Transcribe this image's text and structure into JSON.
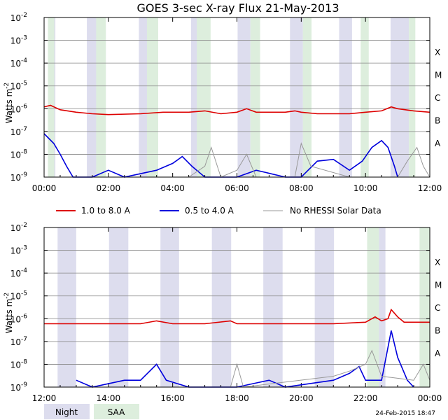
{
  "title": "GOES 3-sec X-ray Flux   21-May-2013",
  "footer_timestamp": "24-Feb-2015 18:47",
  "colors": {
    "long": "#dd0000",
    "short": "#0000dd",
    "norhessi": "#999999",
    "night": "#ddddee",
    "saa": "#ddeedd",
    "grid": "#888888"
  },
  "legend": {
    "long_label": "1.0 to 8.0 A",
    "short_label": "0.5 to 4.0 A",
    "norhessi_label": "No RHESSI Solar Data",
    "night_label": "Night",
    "saa_label": "SAA"
  },
  "chart_data": [
    {
      "type": "line",
      "panel": "top",
      "ylabel": "Watts m^-2",
      "y_scale": "log",
      "ylim": [
        1e-09,
        0.01
      ],
      "y_tick_labels": [
        "10-9",
        "10-8",
        "10-7",
        "10-6",
        "10-5",
        "10-4",
        "10-3",
        "10-2"
      ],
      "xlim_hours": [
        0,
        12
      ],
      "x_tick_labels": [
        "00:00",
        "02:00",
        "04:00",
        "06:00",
        "08:00",
        "10:00",
        "12:00"
      ],
      "class_labels": [
        "A",
        "B",
        "C",
        "M",
        "X"
      ],
      "night_intervals": [
        [
          0.12,
          0.35
        ],
        [
          1.33,
          1.92
        ],
        [
          2.95,
          3.55
        ],
        [
          4.57,
          5.12
        ],
        [
          6.02,
          6.42
        ],
        [
          7.65,
          8.05
        ],
        [
          9.18,
          9.58
        ],
        [
          10.78,
          11.35
        ]
      ],
      "saa_intervals": [
        [
          0.12,
          0.32
        ],
        [
          1.62,
          1.92
        ],
        [
          3.2,
          3.55
        ],
        [
          4.75,
          5.18
        ],
        [
          6.42,
          6.72
        ],
        [
          8.05,
          8.32
        ],
        [
          9.85,
          10.1
        ],
        [
          11.35,
          11.55
        ]
      ],
      "series": [
        {
          "name": "1.0 to 8.0 A",
          "color": "#dd0000",
          "points": [
            [
              0,
              1.2e-06
            ],
            [
              0.2,
              1.4e-06
            ],
            [
              0.5,
              9e-07
            ],
            [
              1,
              7e-07
            ],
            [
              1.5,
              6e-07
            ],
            [
              2,
              5.5e-07
            ],
            [
              3,
              6e-07
            ],
            [
              3.7,
              7e-07
            ],
            [
              4,
              7e-07
            ],
            [
              4.5,
              7e-07
            ],
            [
              5,
              8e-07
            ],
            [
              5.5,
              6e-07
            ],
            [
              6,
              7e-07
            ],
            [
              6.3,
              1e-06
            ],
            [
              6.6,
              7e-07
            ],
            [
              7,
              7e-07
            ],
            [
              7.5,
              7e-07
            ],
            [
              7.8,
              8e-07
            ],
            [
              8,
              7e-07
            ],
            [
              8.5,
              6e-07
            ],
            [
              9,
              6e-07
            ],
            [
              9.5,
              6e-07
            ],
            [
              10,
              7e-07
            ],
            [
              10.5,
              8e-07
            ],
            [
              10.8,
              1.2e-06
            ],
            [
              11,
              1e-06
            ],
            [
              11.5,
              8e-07
            ],
            [
              12,
              7e-07
            ]
          ]
        },
        {
          "name": "0.5 to 4.0 A",
          "color": "#0000dd",
          "points": [
            [
              0,
              8e-08
            ],
            [
              0.3,
              3e-08
            ],
            [
              0.5,
              1e-08
            ],
            [
              0.7,
              3e-09
            ],
            [
              0.9,
              1e-09
            ],
            [
              1.5,
              1e-09
            ],
            [
              2.0,
              2e-09
            ],
            [
              2.5,
              1e-09
            ],
            [
              3.5,
              2e-09
            ],
            [
              4.0,
              4e-09
            ],
            [
              4.3,
              8e-09
            ],
            [
              4.6,
              3e-09
            ],
            [
              5.0,
              1e-09
            ],
            [
              6.0,
              1e-09
            ],
            [
              6.6,
              2e-09
            ],
            [
              7.5,
              1e-09
            ],
            [
              8.0,
              1e-09
            ],
            [
              8.5,
              5e-09
            ],
            [
              9.0,
              6e-09
            ],
            [
              9.5,
              2e-09
            ],
            [
              9.9,
              5e-09
            ],
            [
              10.2,
              2e-08
            ],
            [
              10.5,
              4e-08
            ],
            [
              10.7,
              2e-08
            ],
            [
              10.9,
              3e-09
            ],
            [
              11.0,
              1e-09
            ]
          ]
        },
        {
          "name": "No RHESSI Solar Data",
          "color": "#999999",
          "points": [
            [
              4.5,
              1e-09
            ],
            [
              5.0,
              3e-09
            ],
            [
              5.2,
              2e-08
            ],
            [
              5.5,
              1e-09
            ],
            [
              6.0,
              2e-09
            ],
            [
              6.3,
              1e-08
            ],
            [
              6.6,
              1e-09
            ],
            [
              7.8,
              1e-09
            ],
            [
              8.0,
              3e-08
            ],
            [
              8.3,
              3e-09
            ],
            [
              9.5,
              1e-09
            ],
            [
              11.0,
              1e-09
            ],
            [
              11.3,
              5e-09
            ],
            [
              11.6,
              2e-08
            ],
            [
              11.8,
              3e-09
            ],
            [
              12,
              1e-09
            ]
          ]
        }
      ]
    },
    {
      "type": "line",
      "panel": "bottom",
      "ylabel": "Watts m^-2",
      "y_scale": "log",
      "ylim": [
        1e-09,
        0.01
      ],
      "y_tick_labels": [
        "10-9",
        "10-8",
        "10-7",
        "10-6",
        "10-5",
        "10-4",
        "10-3",
        "10-2"
      ],
      "xlim_hours": [
        12,
        24
      ],
      "x_tick_labels": [
        "12:00",
        "14:00",
        "16:00",
        "18:00",
        "20:00",
        "22:00",
        "00:00"
      ],
      "class_labels": [
        "A",
        "B",
        "C",
        "M",
        "X"
      ],
      "night_intervals": [
        [
          12.42,
          13.0
        ],
        [
          14.02,
          14.62
        ],
        [
          15.62,
          16.2
        ],
        [
          17.22,
          17.82
        ],
        [
          18.82,
          19.42
        ],
        [
          20.42,
          21.02
        ],
        [
          22.42,
          22.62
        ]
      ],
      "saa_intervals": [
        [
          22.05,
          22.42
        ],
        [
          23.68,
          24.0
        ]
      ],
      "series": [
        {
          "name": "1.0 to 8.0 A",
          "color": "#dd0000",
          "points": [
            [
              12,
              6e-07
            ],
            [
              13,
              6e-07
            ],
            [
              14,
              6e-07
            ],
            [
              15,
              6e-07
            ],
            [
              15.5,
              8e-07
            ],
            [
              16,
              6e-07
            ],
            [
              17,
              6e-07
            ],
            [
              17.8,
              8e-07
            ],
            [
              18,
              6e-07
            ],
            [
              19,
              6e-07
            ],
            [
              20,
              6e-07
            ],
            [
              21,
              6e-07
            ],
            [
              22,
              7e-07
            ],
            [
              22.3,
              1.2e-06
            ],
            [
              22.5,
              8e-07
            ],
            [
              22.7,
              1e-06
            ],
            [
              22.8,
              2.5e-06
            ],
            [
              23.0,
              1.2e-06
            ],
            [
              23.2,
              7e-07
            ],
            [
              24,
              7e-07
            ]
          ]
        },
        {
          "name": "0.5 to 4.0 A",
          "color": "#0000dd",
          "points": [
            [
              13.0,
              2e-09
            ],
            [
              13.5,
              1e-09
            ],
            [
              14.5,
              2e-09
            ],
            [
              15.0,
              2e-09
            ],
            [
              15.5,
              1e-08
            ],
            [
              15.8,
              2e-09
            ],
            [
              16.5,
              1e-09
            ],
            [
              18.0,
              1e-09
            ],
            [
              19.0,
              2e-09
            ],
            [
              19.5,
              1e-09
            ],
            [
              21.0,
              2e-09
            ],
            [
              21.5,
              4e-09
            ],
            [
              21.8,
              8e-09
            ],
            [
              22.0,
              2e-09
            ],
            [
              22.5,
              2e-09
            ],
            [
              22.8,
              3e-07
            ],
            [
              23.0,
              2e-08
            ],
            [
              23.3,
              2e-09
            ],
            [
              23.5,
              1e-09
            ]
          ]
        },
        {
          "name": "No RHESSI Solar Data",
          "color": "#999999",
          "points": [
            [
              12,
              1e-09
            ],
            [
              13,
              1e-09
            ],
            [
              17.8,
              1e-09
            ],
            [
              18.0,
              1e-08
            ],
            [
              18.2,
              1e-09
            ],
            [
              21.0,
              3e-09
            ],
            [
              21.5,
              5e-09
            ],
            [
              22.0,
              1e-08
            ],
            [
              22.2,
              4e-08
            ],
            [
              22.5,
              3e-09
            ],
            [
              23.5,
              2e-09
            ],
            [
              23.8,
              1e-08
            ],
            [
              24,
              2e-09
            ]
          ]
        }
      ]
    }
  ]
}
